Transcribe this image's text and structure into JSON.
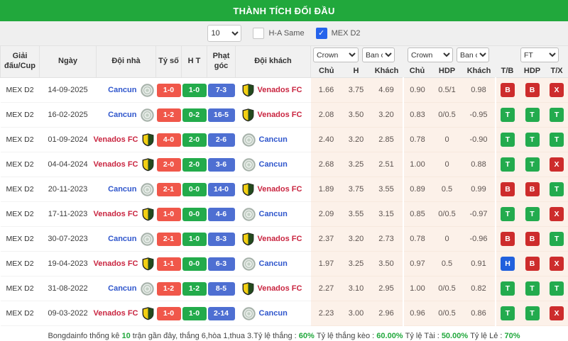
{
  "title": "THÀNH TÍCH ĐỐI ĐẦU",
  "controls": {
    "count_select": "10",
    "ha_same_label": "H-A Same",
    "ha_same_checked": false,
    "league_label": "MEX D2",
    "league_checked": true
  },
  "table": {
    "left_headers": [
      "Giải đấu/Cup",
      "Ngày",
      "Đội nhà",
      "Tỷ số",
      "H T",
      "Phạt góc",
      "Đội khách"
    ],
    "selects": [
      "Crown",
      "Ban c",
      "Crown",
      "Ban c",
      "FT"
    ],
    "odds_headers": [
      "Chủ",
      "H",
      "Khách",
      "Chủ",
      "HDP",
      "Khách",
      "T/B",
      "HDP",
      "T/X"
    ],
    "rows": [
      {
        "league": "MEX D2",
        "date": "14-09-2025",
        "home": {
          "name": "Cancun",
          "team": "cancun"
        },
        "score": "1-0",
        "ht": "1-0",
        "corners": "7-3",
        "away": {
          "name": "Venados FC",
          "team": "venados"
        },
        "odds_1x2": [
          "1.66",
          "3.75",
          "4.69"
        ],
        "odds_hdp": [
          "0.90",
          "0.5/1",
          "0.98"
        ],
        "results": [
          {
            "label": "B",
            "status": "red"
          },
          {
            "label": "B",
            "status": "red"
          },
          {
            "label": "X",
            "status": "red"
          }
        ]
      },
      {
        "league": "MEX D2",
        "date": "16-02-2025",
        "home": {
          "name": "Cancun",
          "team": "cancun"
        },
        "score": "1-2",
        "ht": "0-2",
        "corners": "16-5",
        "away": {
          "name": "Venados FC",
          "team": "venados"
        },
        "odds_1x2": [
          "2.08",
          "3.50",
          "3.20"
        ],
        "odds_hdp": [
          "0.83",
          "0/0.5",
          "-0.95"
        ],
        "results": [
          {
            "label": "T",
            "status": "green"
          },
          {
            "label": "T",
            "status": "green"
          },
          {
            "label": "T",
            "status": "green"
          }
        ]
      },
      {
        "league": "MEX D2",
        "date": "01-09-2024",
        "home": {
          "name": "Venados FC",
          "team": "venados"
        },
        "score": "4-0",
        "ht": "2-0",
        "corners": "2-6",
        "away": {
          "name": "Cancun",
          "team": "cancun"
        },
        "odds_1x2": [
          "2.40",
          "3.20",
          "2.85"
        ],
        "odds_hdp": [
          "0.78",
          "0",
          "-0.90"
        ],
        "results": [
          {
            "label": "T",
            "status": "green"
          },
          {
            "label": "T",
            "status": "green"
          },
          {
            "label": "T",
            "status": "green"
          }
        ]
      },
      {
        "league": "MEX D2",
        "date": "04-04-2024",
        "home": {
          "name": "Venados FC",
          "team": "venados"
        },
        "score": "2-0",
        "ht": "2-0",
        "corners": "3-6",
        "away": {
          "name": "Cancun",
          "team": "cancun"
        },
        "odds_1x2": [
          "2.68",
          "3.25",
          "2.51"
        ],
        "odds_hdp": [
          "1.00",
          "0",
          "0.88"
        ],
        "results": [
          {
            "label": "T",
            "status": "green"
          },
          {
            "label": "T",
            "status": "green"
          },
          {
            "label": "X",
            "status": "red"
          }
        ]
      },
      {
        "league": "MEX D2",
        "date": "20-11-2023",
        "home": {
          "name": "Cancun",
          "team": "cancun"
        },
        "score": "2-1",
        "ht": "0-0",
        "corners": "14-0",
        "away": {
          "name": "Venados FC",
          "team": "venados"
        },
        "odds_1x2": [
          "1.89",
          "3.75",
          "3.55"
        ],
        "odds_hdp": [
          "0.89",
          "0.5",
          "0.99"
        ],
        "results": [
          {
            "label": "B",
            "status": "red"
          },
          {
            "label": "B",
            "status": "red"
          },
          {
            "label": "T",
            "status": "green"
          }
        ]
      },
      {
        "league": "MEX D2",
        "date": "17-11-2023",
        "home": {
          "name": "Venados FC",
          "team": "venados"
        },
        "score": "1-0",
        "ht": "0-0",
        "corners": "4-6",
        "away": {
          "name": "Cancun",
          "team": "cancun"
        },
        "odds_1x2": [
          "2.09",
          "3.55",
          "3.15"
        ],
        "odds_hdp": [
          "0.85",
          "0/0.5",
          "-0.97"
        ],
        "results": [
          {
            "label": "T",
            "status": "green"
          },
          {
            "label": "T",
            "status": "green"
          },
          {
            "label": "X",
            "status": "red"
          }
        ]
      },
      {
        "league": "MEX D2",
        "date": "30-07-2023",
        "home": {
          "name": "Cancun",
          "team": "cancun"
        },
        "score": "2-1",
        "ht": "1-0",
        "corners": "8-3",
        "away": {
          "name": "Venados FC",
          "team": "venados"
        },
        "odds_1x2": [
          "2.37",
          "3.20",
          "2.73"
        ],
        "odds_hdp": [
          "0.78",
          "0",
          "-0.96"
        ],
        "results": [
          {
            "label": "B",
            "status": "red"
          },
          {
            "label": "B",
            "status": "red"
          },
          {
            "label": "T",
            "status": "green"
          }
        ]
      },
      {
        "league": "MEX D2",
        "date": "19-04-2023",
        "home": {
          "name": "Venados FC",
          "team": "venados"
        },
        "score": "1-1",
        "ht": "0-0",
        "corners": "6-3",
        "away": {
          "name": "Cancun",
          "team": "cancun"
        },
        "odds_1x2": [
          "1.97",
          "3.25",
          "3.50"
        ],
        "odds_hdp": [
          "0.97",
          "0.5",
          "0.91"
        ],
        "results": [
          {
            "label": "H",
            "status": "blue"
          },
          {
            "label": "B",
            "status": "red"
          },
          {
            "label": "X",
            "status": "red"
          }
        ]
      },
      {
        "league": "MEX D2",
        "date": "31-08-2022",
        "home": {
          "name": "Cancun",
          "team": "cancun"
        },
        "score": "1-2",
        "ht": "1-2",
        "corners": "8-5",
        "away": {
          "name": "Venados FC",
          "team": "venados"
        },
        "odds_1x2": [
          "2.27",
          "3.10",
          "2.95"
        ],
        "odds_hdp": [
          "1.00",
          "0/0.5",
          "0.82"
        ],
        "results": [
          {
            "label": "T",
            "status": "green"
          },
          {
            "label": "T",
            "status": "green"
          },
          {
            "label": "T",
            "status": "green"
          }
        ]
      },
      {
        "league": "MEX D2",
        "date": "09-03-2022",
        "home": {
          "name": "Venados FC",
          "team": "venados"
        },
        "score": "1-0",
        "ht": "1-0",
        "corners": "2-14",
        "away": {
          "name": "Cancun",
          "team": "cancun"
        },
        "odds_1x2": [
          "2.23",
          "3.00",
          "2.96"
        ],
        "odds_hdp": [
          "0.96",
          "0/0.5",
          "0.86"
        ],
        "results": [
          {
            "label": "T",
            "status": "green"
          },
          {
            "label": "T",
            "status": "green"
          },
          {
            "label": "X",
            "status": "red"
          }
        ]
      }
    ]
  },
  "footer": {
    "parts": [
      {
        "text": "Bongdainfo thống kê ",
        "green": false
      },
      {
        "text": "10",
        "green": true
      },
      {
        "text": " trận gần đây, thắng 6,hòa 1,thua 3.Tỷ lệ thắng : ",
        "green": false
      },
      {
        "text": "60%",
        "green": true
      },
      {
        "text": " Tỷ lệ thắng kèo : ",
        "green": false
      },
      {
        "text": "60.00%",
        "green": true
      },
      {
        "text": " Tỷ lệ Tài : ",
        "green": false
      },
      {
        "text": "50.00%",
        "green": true
      },
      {
        "text": " Tỷ lệ Lẻ : ",
        "green": false
      },
      {
        "text": "70%",
        "green": true
      }
    ]
  },
  "colors": {
    "accent_green": "#21a83c",
    "header_bg": "#f1f1f1",
    "odds_bg": "#fcf1e9",
    "badge_red": "#f0574a",
    "badge_green": "#23ab4b",
    "badge_blue": "#4e6fd2",
    "mark_red": "#cd2c2c",
    "mark_green": "#23ab4e",
    "mark_blue": "#2160dd",
    "checkbox_blue": "#2563eb",
    "team_cancun": "#2f56cc",
    "team_venados": "#c92540"
  }
}
